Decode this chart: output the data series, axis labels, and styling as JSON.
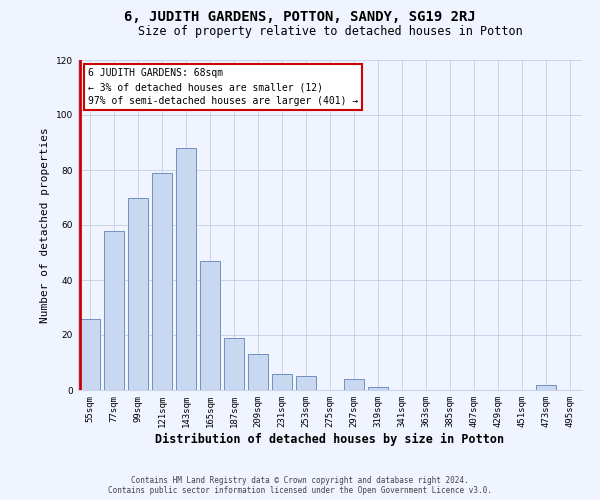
{
  "title": "6, JUDITH GARDENS, POTTON, SANDY, SG19 2RJ",
  "subtitle": "Size of property relative to detached houses in Potton",
  "xlabel": "Distribution of detached houses by size in Potton",
  "ylabel": "Number of detached properties",
  "bar_labels": [
    "55sqm",
    "77sqm",
    "99sqm",
    "121sqm",
    "143sqm",
    "165sqm",
    "187sqm",
    "209sqm",
    "231sqm",
    "253sqm",
    "275sqm",
    "297sqm",
    "319sqm",
    "341sqm",
    "363sqm",
    "385sqm",
    "407sqm",
    "429sqm",
    "451sqm",
    "473sqm",
    "495sqm"
  ],
  "bar_values": [
    26,
    58,
    70,
    79,
    88,
    47,
    19,
    13,
    6,
    5,
    0,
    4,
    1,
    0,
    0,
    0,
    0,
    0,
    0,
    2,
    0
  ],
  "bar_color_normal": "#c8d8f0",
  "bar_edge_color": "#7090c0",
  "red_line_color": "#cc0000",
  "annotation_border_color": "#cc0000",
  "annotation_text_line1": "6 JUDITH GARDENS: 68sqm",
  "annotation_text_line2": "← 3% of detached houses are smaller (12)",
  "annotation_text_line3": "97% of semi-detached houses are larger (401) →",
  "ylim": [
    0,
    120
  ],
  "yticks": [
    0,
    20,
    40,
    60,
    80,
    100,
    120
  ],
  "footer_line1": "Contains HM Land Registry data © Crown copyright and database right 2024.",
  "footer_line2": "Contains public sector information licensed under the Open Government Licence v3.0.",
  "background_color": "#f0f4ff",
  "grid_color": "#c8d4e8",
  "fig_width": 6.0,
  "fig_height": 5.0,
  "dpi": 100
}
